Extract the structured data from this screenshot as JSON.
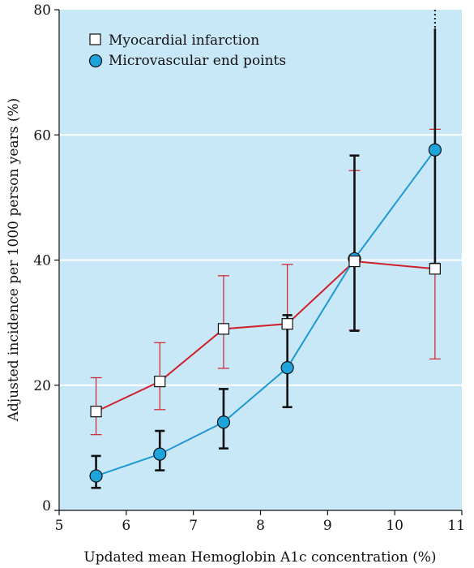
{
  "chart_data": {
    "type": "line",
    "xlabel": "Updated mean Hemoglobin A1c concentration (%)",
    "ylabel": "Adjusted incidence per 1000 person years (%)",
    "xlim": [
      5,
      11
    ],
    "ylim": [
      0,
      80
    ],
    "xticks": [
      5,
      6,
      7,
      8,
      9,
      10,
      11
    ],
    "yticks": [
      0,
      20,
      40,
      60,
      80
    ],
    "grid": "horizontal",
    "legend": "top-left",
    "background_color": "#c8e7f7",
    "series": [
      {
        "name": "Myocardial infarction",
        "marker": "square",
        "line_color": "#d0202a",
        "marker_fill": "#ffffff",
        "errorbar_color": "#d0202a",
        "points": [
          {
            "x": 5.55,
            "y": 15.8,
            "lo": 12.1,
            "hi": 21.2
          },
          {
            "x": 6.5,
            "y": 20.6,
            "lo": 16.1,
            "hi": 26.8
          },
          {
            "x": 7.45,
            "y": 29.0,
            "lo": 22.7,
            "hi": 37.5
          },
          {
            "x": 8.4,
            "y": 29.8,
            "lo": 22.5,
            "hi": 39.3
          },
          {
            "x": 9.4,
            "y": 39.8,
            "lo": 28.8,
            "hi": 54.3
          },
          {
            "x": 10.6,
            "y": 38.6,
            "lo": 24.2,
            "hi": 60.9
          }
        ]
      },
      {
        "name": "Microvascular end points",
        "marker": "circle",
        "line_color": "#1e9ad0",
        "marker_fill": "#1ea4dc",
        "errorbar_color": "#111111",
        "points": [
          {
            "x": 5.55,
            "y": 5.5,
            "lo": 3.6,
            "hi": 8.7
          },
          {
            "x": 6.5,
            "y": 9.0,
            "lo": 6.4,
            "hi": 12.7
          },
          {
            "x": 7.45,
            "y": 14.1,
            "lo": 9.9,
            "hi": 19.4
          },
          {
            "x": 8.4,
            "y": 22.8,
            "lo": 16.5,
            "hi": 31.2
          },
          {
            "x": 9.4,
            "y": 40.2,
            "lo": 28.7,
            "hi": 56.7
          },
          {
            "x": 10.6,
            "y": 57.6,
            "lo": 39.4,
            "hi": 80,
            "hi_truncated": true
          }
        ]
      }
    ]
  }
}
